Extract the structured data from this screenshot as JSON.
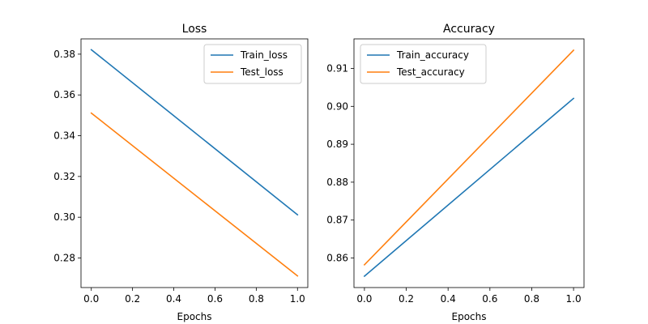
{
  "chart_data": [
    {
      "type": "line",
      "title": "Loss",
      "xlabel": "Epochs",
      "ylabel": "",
      "xlim": [
        -0.05,
        1.05
      ],
      "ylim": [
        0.2655,
        0.3875
      ],
      "xticks": [
        0.0,
        0.2,
        0.4,
        0.6,
        0.8,
        1.0
      ],
      "xtick_labels": [
        "0.0",
        "0.2",
        "0.4",
        "0.6",
        "0.8",
        "1.0"
      ],
      "yticks": [
        0.28,
        0.3,
        0.32,
        0.34,
        0.36,
        0.38
      ],
      "ytick_labels": [
        "0.28",
        "0.30",
        "0.32",
        "0.34",
        "0.36",
        "0.38"
      ],
      "legend_position": "top-right",
      "grid": false,
      "x": [
        0,
        1
      ],
      "series": [
        {
          "name": "Train_loss",
          "values": [
            0.3822,
            0.3012
          ],
          "color": "#1f77b4"
        },
        {
          "name": "Test_loss",
          "values": [
            0.3511,
            0.2712
          ],
          "color": "#ff7f0e"
        }
      ]
    },
    {
      "type": "line",
      "title": "Accuracy",
      "xlabel": "Epochs",
      "ylabel": "",
      "xlim": [
        -0.05,
        1.05
      ],
      "ylim": [
        0.8522,
        0.9178
      ],
      "xticks": [
        0.0,
        0.2,
        0.4,
        0.6,
        0.8,
        1.0
      ],
      "xtick_labels": [
        "0.0",
        "0.2",
        "0.4",
        "0.6",
        "0.8",
        "1.0"
      ],
      "yticks": [
        0.86,
        0.87,
        0.88,
        0.89,
        0.9,
        0.91
      ],
      "ytick_labels": [
        "0.86",
        "0.87",
        "0.88",
        "0.89",
        "0.90",
        "0.91"
      ],
      "legend_position": "top-left",
      "grid": false,
      "x": [
        0,
        1
      ],
      "series": [
        {
          "name": "Train_accuracy",
          "values": [
            0.8552,
            0.9021
          ],
          "color": "#1f77b4"
        },
        {
          "name": "Test_accuracy",
          "values": [
            0.8582,
            0.9148
          ],
          "color": "#ff7f0e"
        }
      ]
    }
  ]
}
